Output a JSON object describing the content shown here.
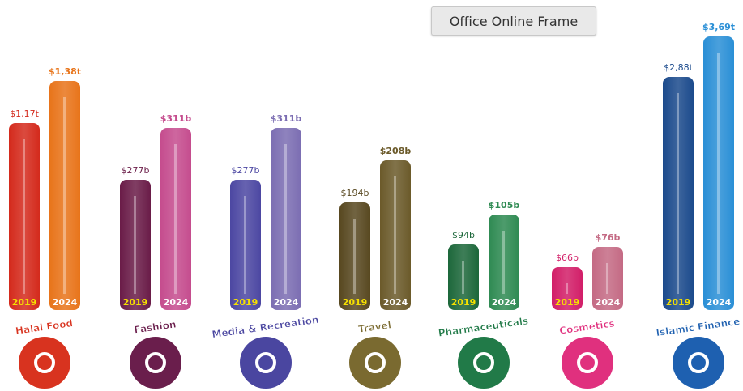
{
  "frame_button": "Office Online Frame",
  "sectors": [
    {
      "name": "Halal Food",
      "bars": [
        {
          "year": "2019",
          "label": "$1,17t"
        },
        {
          "year": "2024",
          "label": "$1,38t"
        }
      ]
    },
    {
      "name": "Fashion",
      "bars": [
        {
          "year": "2019",
          "label": "$277b"
        },
        {
          "year": "2024",
          "label": "$311b"
        }
      ]
    },
    {
      "name": "Media & Recreation",
      "bars": [
        {
          "year": "2019",
          "label": "$277b"
        },
        {
          "year": "2024",
          "label": "$311b"
        }
      ]
    },
    {
      "name": "Travel",
      "bars": [
        {
          "year": "2019",
          "label": "$194b"
        },
        {
          "year": "2024",
          "label": "$208b"
        }
      ]
    },
    {
      "name": "Pharmaceuticals",
      "bars": [
        {
          "year": "2019",
          "label": "$94b"
        },
        {
          "year": "2024",
          "label": "$105b"
        }
      ]
    },
    {
      "name": "Cosmetics",
      "bars": [
        {
          "year": "2019",
          "label": "$66b"
        },
        {
          "year": "2024",
          "label": "$76b"
        }
      ]
    },
    {
      "name": "Islamic Finance",
      "bars": [
        {
          "year": "2019",
          "label": "$2,88t"
        },
        {
          "year": "2024",
          "label": "$3,69t"
        }
      ]
    }
  ]
}
